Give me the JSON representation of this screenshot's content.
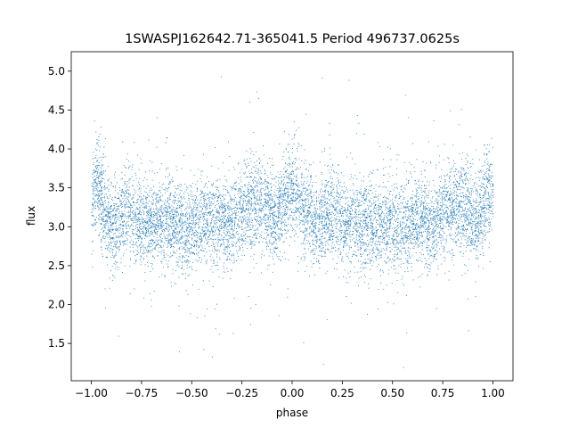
{
  "chart_data": {
    "type": "scatter",
    "title": "1SWASPJ162642.71-365041.5 Period 496737.0625s",
    "xlabel": "phase",
    "ylabel": "flux",
    "xlim": [
      -1.1,
      1.1
    ],
    "ylim": [
      1.02,
      5.25
    ],
    "xticks": [
      {
        "value": -1.0,
        "label": "−1.00"
      },
      {
        "value": -0.75,
        "label": "−0.75"
      },
      {
        "value": -0.5,
        "label": "−0.50"
      },
      {
        "value": -0.25,
        "label": "−0.25"
      },
      {
        "value": 0.0,
        "label": "0.00"
      },
      {
        "value": 0.25,
        "label": "0.25"
      },
      {
        "value": 0.5,
        "label": "0.50"
      },
      {
        "value": 0.75,
        "label": "0.75"
      },
      {
        "value": 1.0,
        "label": "1.00"
      }
    ],
    "yticks": [
      {
        "value": 1.5,
        "label": "1.5"
      },
      {
        "value": 2.0,
        "label": "2.0"
      },
      {
        "value": 2.5,
        "label": "2.5"
      },
      {
        "value": 3.0,
        "label": "3.0"
      },
      {
        "value": 3.5,
        "label": "3.5"
      },
      {
        "value": 4.0,
        "label": "4.0"
      },
      {
        "value": 4.5,
        "label": "4.5"
      },
      {
        "value": 5.0,
        "label": "5.0"
      }
    ],
    "grid": false,
    "legend": "none",
    "marker_color": "#1f77b4",
    "series": [
      {
        "phase_range": [
          -1.0,
          1.0
        ],
        "flux_center_profile": [
          {
            "x": -1.0,
            "y": 3.35
          },
          {
            "x": -0.97,
            "y": 3.55
          },
          {
            "x": -0.93,
            "y": 3.1
          },
          {
            "x": -0.88,
            "y": 3.0
          },
          {
            "x": -0.82,
            "y": 3.25
          },
          {
            "x": -0.75,
            "y": 3.05
          },
          {
            "x": -0.68,
            "y": 3.05
          },
          {
            "x": -0.6,
            "y": 3.1
          },
          {
            "x": -0.52,
            "y": 2.95
          },
          {
            "x": -0.45,
            "y": 3.05
          },
          {
            "x": -0.38,
            "y": 3.1
          },
          {
            "x": -0.3,
            "y": 3.0
          },
          {
            "x": -0.22,
            "y": 3.3
          },
          {
            "x": -0.15,
            "y": 3.25
          },
          {
            "x": -0.08,
            "y": 3.1
          },
          {
            "x": -0.03,
            "y": 3.4
          },
          {
            "x": 0.0,
            "y": 3.55
          },
          {
            "x": 0.05,
            "y": 3.25
          },
          {
            "x": 0.12,
            "y": 3.0
          },
          {
            "x": 0.18,
            "y": 3.2
          },
          {
            "x": 0.25,
            "y": 3.05
          },
          {
            "x": 0.32,
            "y": 3.1
          },
          {
            "x": 0.4,
            "y": 3.0
          },
          {
            "x": 0.48,
            "y": 3.05
          },
          {
            "x": 0.55,
            "y": 3.0
          },
          {
            "x": 0.62,
            "y": 3.1
          },
          {
            "x": 0.7,
            "y": 3.0
          },
          {
            "x": 0.78,
            "y": 3.3
          },
          {
            "x": 0.85,
            "y": 3.25
          },
          {
            "x": 0.92,
            "y": 3.05
          },
          {
            "x": 0.97,
            "y": 3.4
          },
          {
            "x": 1.0,
            "y": 3.5
          }
        ],
        "flux_spread": 0.28,
        "flux_min": 1.15,
        "flux_max": 5.05,
        "point_count": 9000
      }
    ]
  }
}
